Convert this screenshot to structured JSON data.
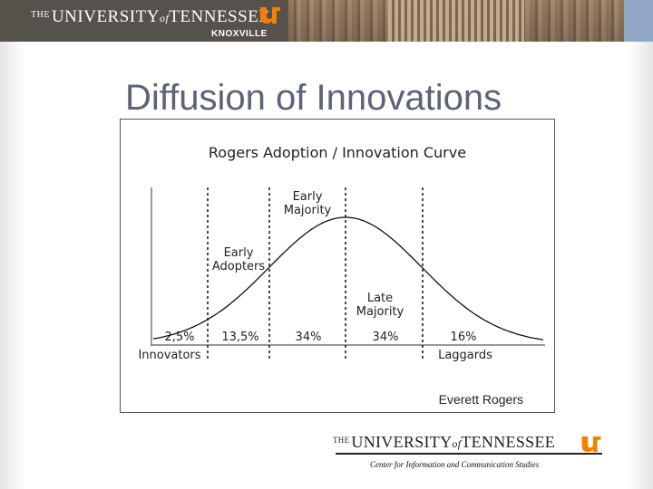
{
  "header": {
    "the": "THE",
    "university": "UNIVERSITY",
    "of": "of",
    "state": "TENNESSEE",
    "campus": "KNOXVILLE",
    "logo_icon": "ut-logo-icon"
  },
  "slide": {
    "title": "Diffusion of Innovations"
  },
  "figure": {
    "chart_title": "Rogers Adoption / Innovation Curve",
    "credit": "Everett Rogers",
    "stages": [
      {
        "percent": "2,5%",
        "label": "Innovators"
      },
      {
        "percent": "13,5%",
        "label": ""
      },
      {
        "percent": "34%",
        "label": ""
      },
      {
        "percent": "34%",
        "label": ""
      },
      {
        "percent": "16%",
        "label": "Laggards"
      }
    ],
    "curve_labels": {
      "early_adopters_1": "Early",
      "early_adopters_2": "Adopters",
      "early_majority_1": "Early",
      "early_majority_2": "Majority",
      "late_majority_1": "Late",
      "late_majority_2": "Majority"
    }
  },
  "footer": {
    "the": "THE",
    "university": "UNIVERSITY",
    "of": "of",
    "state": "TENNESSEE",
    "department": "Center for Information and Communication Studies",
    "logo_icon": "ut-logo-icon"
  },
  "colors": {
    "title": "#5d6478",
    "ut_orange": "#f77f00"
  }
}
